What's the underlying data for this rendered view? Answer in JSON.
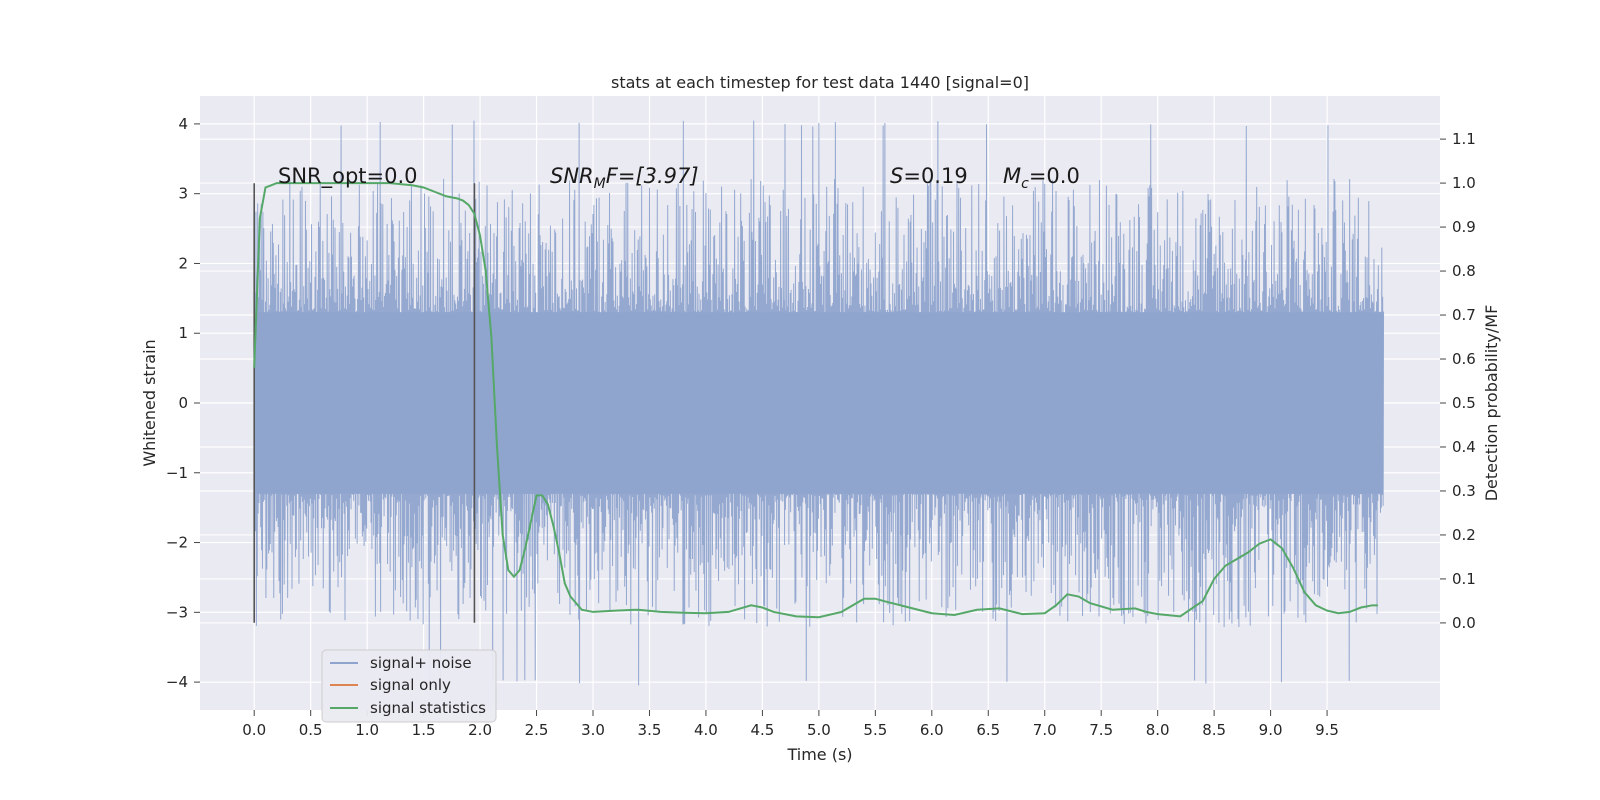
{
  "chart_data": {
    "type": "line",
    "title": "stats at each timestep for test data 1440 [signal=0]",
    "xlabel": "Time (s)",
    "ylabel": "Whitened strain",
    "ylabel_right": "Detection probability/MF",
    "xlim": [
      -0.48,
      10.5
    ],
    "ylim": [
      -4.4,
      4.4
    ],
    "ylim_right": [
      -0.198,
      1.198
    ],
    "x_ticks": [
      "0.0",
      "0.5",
      "1.0",
      "1.5",
      "2.0",
      "2.5",
      "3.0",
      "3.5",
      "4.0",
      "4.5",
      "5.0",
      "5.5",
      "6.0",
      "6.5",
      "7.0",
      "7.5",
      "8.0",
      "8.5",
      "9.0",
      "9.5"
    ],
    "y_ticks": [
      "4",
      "3",
      "2",
      "1",
      "0",
      "−1",
      "−2",
      "−3",
      "−4"
    ],
    "y_right_ticks": [
      "1.1",
      "1.0",
      "0.9",
      "0.8",
      "0.7",
      "0.6",
      "0.5",
      "0.4",
      "0.3",
      "0.2",
      "0.1",
      "0.0"
    ],
    "grid": true,
    "background": "#eaeaf2",
    "legend_position": "lower-left",
    "annotations": {
      "snr_opt": "SNR_opt=0.0",
      "snr_mf_base": "SNR",
      "snr_mf_sub": "M",
      "snr_mf_rest": "F=[3.97]",
      "s_var": "S",
      "s_value": "=0.19",
      "mc_var": "M",
      "mc_sub": "c",
      "mc_value": "=0.0"
    },
    "window_markers": {
      "x": [
        0.0,
        1.95
      ],
      "y_top": 3.15,
      "y_bottom": -3.15
    },
    "series": [
      {
        "name": "signal+ noise",
        "color": "#8fa4cd",
        "x_range": [
          0.0,
          10.0
        ],
        "envelope_upper": 1.3,
        "envelope_lower": -1.3,
        "peak_max": 4.05,
        "peak_min": -4.05
      },
      {
        "name": "signal only",
        "color": "#dd8452",
        "values": []
      },
      {
        "name": "signal statistics",
        "color": "#55a868",
        "axis": "right",
        "x": [
          0.0,
          0.05,
          0.1,
          0.15,
          0.2,
          0.3,
          0.4,
          0.5,
          0.6,
          0.8,
          1.0,
          1.2,
          1.4,
          1.5,
          1.6,
          1.7,
          1.8,
          1.85,
          1.9,
          1.95,
          2.0,
          2.05,
          2.1,
          2.15,
          2.2,
          2.25,
          2.3,
          2.35,
          2.4,
          2.5,
          2.55,
          2.6,
          2.65,
          2.7,
          2.75,
          2.8,
          2.9,
          3.0,
          3.2,
          3.4,
          3.6,
          3.8,
          4.0,
          4.2,
          4.4,
          4.5,
          4.6,
          4.8,
          5.0,
          5.2,
          5.4,
          5.5,
          5.6,
          5.8,
          6.0,
          6.2,
          6.4,
          6.6,
          6.8,
          7.0,
          7.1,
          7.2,
          7.3,
          7.4,
          7.6,
          7.8,
          7.9,
          8.0,
          8.2,
          8.4,
          8.5,
          8.6,
          8.7,
          8.8,
          8.9,
          9.0,
          9.1,
          9.2,
          9.3,
          9.4,
          9.5,
          9.6,
          9.7,
          9.8,
          9.9,
          9.95
        ],
        "y": [
          0.58,
          0.92,
          0.99,
          0.995,
          1.0,
          1.0,
          1.0,
          1.0,
          1.0,
          1.0,
          1.0,
          1.0,
          0.995,
          0.99,
          0.98,
          0.97,
          0.965,
          0.96,
          0.95,
          0.93,
          0.88,
          0.8,
          0.65,
          0.4,
          0.2,
          0.12,
          0.105,
          0.12,
          0.17,
          0.29,
          0.29,
          0.27,
          0.22,
          0.16,
          0.09,
          0.06,
          0.03,
          0.025,
          0.028,
          0.03,
          0.025,
          0.023,
          0.022,
          0.025,
          0.04,
          0.035,
          0.025,
          0.015,
          0.013,
          0.025,
          0.055,
          0.055,
          0.048,
          0.035,
          0.022,
          0.018,
          0.03,
          0.033,
          0.02,
          0.022,
          0.04,
          0.065,
          0.06,
          0.045,
          0.03,
          0.033,
          0.025,
          0.02,
          0.015,
          0.05,
          0.1,
          0.13,
          0.145,
          0.16,
          0.18,
          0.19,
          0.17,
          0.125,
          0.07,
          0.04,
          0.028,
          0.022,
          0.025,
          0.035,
          0.04,
          0.04
        ]
      }
    ]
  }
}
